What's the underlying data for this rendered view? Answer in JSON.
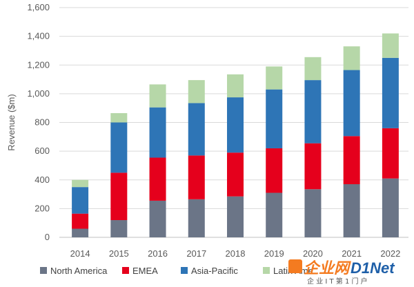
{
  "chart_data": {
    "type": "bar",
    "stacked": true,
    "title": "",
    "xlabel": "",
    "ylabel": "Revenue ($m)",
    "ylim": [
      0,
      1600
    ],
    "yticks": [
      0,
      200,
      400,
      600,
      800,
      1000,
      1200,
      1400,
      1600
    ],
    "ytick_labels": [
      "0",
      "200",
      "400",
      "600",
      "800",
      "1,000",
      "1,200",
      "1,400",
      "1,600"
    ],
    "grid": true,
    "legend_position": "bottom",
    "categories": [
      "2014",
      "2015",
      "2016",
      "2017",
      "2018",
      "2019",
      "2020",
      "2021",
      "2022"
    ],
    "series": [
      {
        "name": "North America",
        "color": "#6b7587",
        "values": [
          60,
          120,
          255,
          265,
          285,
          310,
          335,
          370,
          410
        ]
      },
      {
        "name": "EMEA",
        "color": "#e5001c",
        "values": [
          105,
          330,
          300,
          305,
          305,
          310,
          320,
          335,
          350
        ]
      },
      {
        "name": "Asia-Pacific",
        "color": "#2e75b6",
        "values": [
          185,
          350,
          350,
          365,
          385,
          410,
          440,
          460,
          490
        ]
      },
      {
        "name": "Latin America",
        "color": "#b6d7a8",
        "values": [
          50,
          65,
          160,
          160,
          160,
          160,
          160,
          165,
          170
        ]
      }
    ]
  },
  "legend_visible_labels": [
    "North America",
    "EMEA",
    "Asia-Pacific",
    "Latin Ame"
  ],
  "watermark": {
    "main": "企业网",
    "accent": "D1Net",
    "sub": "企 业 I T 第 1 门 户"
  }
}
